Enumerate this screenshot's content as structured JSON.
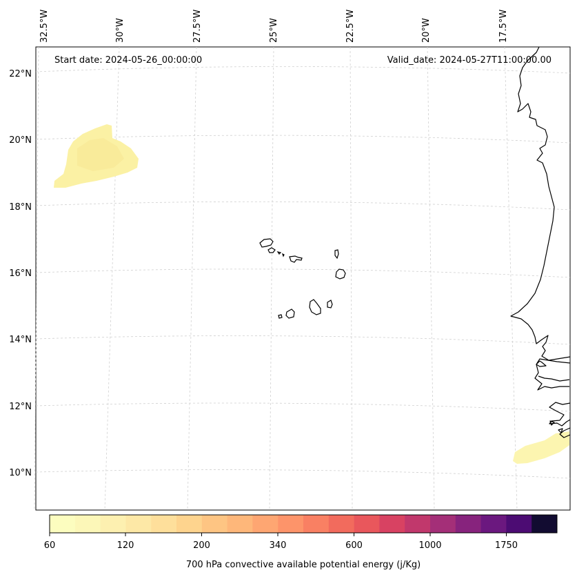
{
  "header": {
    "start_date": "Start date: 2024-05-26_00:00:00",
    "valid_date": "Valid_date: 2024-05-27T11:00:00.00"
  },
  "axes": {
    "lon_labels": [
      "32.5°W",
      "30°W",
      "27.5°W",
      "25°W",
      "22.5°W",
      "20°W",
      "17.5°W"
    ],
    "lat_labels": [
      "22°N",
      "20°N",
      "18°N",
      "16°N",
      "14°N",
      "12°N",
      "10°N"
    ]
  },
  "colorbar": {
    "tick_labels": [
      "60",
      "120",
      "200",
      "340",
      "600",
      "1000",
      "1750"
    ],
    "label": "700 hPa convective available potential energy (j/Kg)",
    "colors": [
      "#fcfdbf",
      "#fcf7b8",
      "#fdf0b0",
      "#fde8a6",
      "#fedf9b",
      "#fed48e",
      "#fec583",
      "#feb77a",
      "#fea672",
      "#fd946a",
      "#f98063",
      "#f26b5d",
      "#e9575c",
      "#d84262",
      "#c1386c",
      "#a42f78",
      "#87237d",
      "#6b187f",
      "#4c0c73",
      "#120c31"
    ]
  },
  "areas": [
    {
      "name": "cape-area-northwest",
      "color": "#fbf0a0"
    },
    {
      "name": "cape-area-southeast",
      "color": "#fcf6b2"
    }
  ]
}
